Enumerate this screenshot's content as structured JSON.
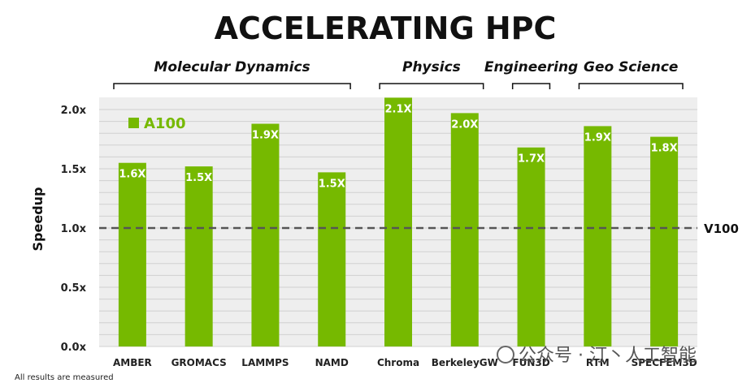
{
  "chart_data": {
    "type": "bar",
    "title": "ACCELERATING HPC",
    "ylabel": "Speedup",
    "xlabel": "",
    "ylim": [
      0,
      2.0
    ],
    "y_ticks": [
      "0.0x",
      "0.5x",
      "1.0x",
      "1.5x",
      "2.0x"
    ],
    "y_tick_values": [
      0,
      0.5,
      1.0,
      1.5,
      2.0
    ],
    "grid": true,
    "legend_position": "top-left",
    "series": [
      {
        "name": "A100",
        "color": "#76b900",
        "values": [
          1.55,
          1.52,
          1.88,
          1.47,
          2.1,
          1.97,
          1.68,
          1.86,
          1.77
        ],
        "labels": [
          "1.6X",
          "1.5X",
          "1.9X",
          "1.5X",
          "2.1X",
          "2.0X",
          "1.7X",
          "1.9X",
          "1.8X"
        ]
      }
    ],
    "categories": [
      "AMBER",
      "GROMACS",
      "LAMMPS",
      "NAMD",
      "Chroma",
      "BerkeleyGW",
      "FUN3D",
      "RTM",
      "SPECFEM3D"
    ],
    "groups": [
      {
        "label": "Molecular Dynamics",
        "start": 0,
        "end": 3
      },
      {
        "label": "Physics",
        "start": 4,
        "end": 5
      },
      {
        "label": "Engineering",
        "start": 6,
        "end": 6
      },
      {
        "label": "Geo Science",
        "start": 7,
        "end": 8
      }
    ],
    "reference_line": {
      "value": 1.0,
      "label": "V100",
      "color": "#555555"
    }
  },
  "footnote": "All results are measured",
  "watermark": "公众号 · 汀丶人工智能"
}
